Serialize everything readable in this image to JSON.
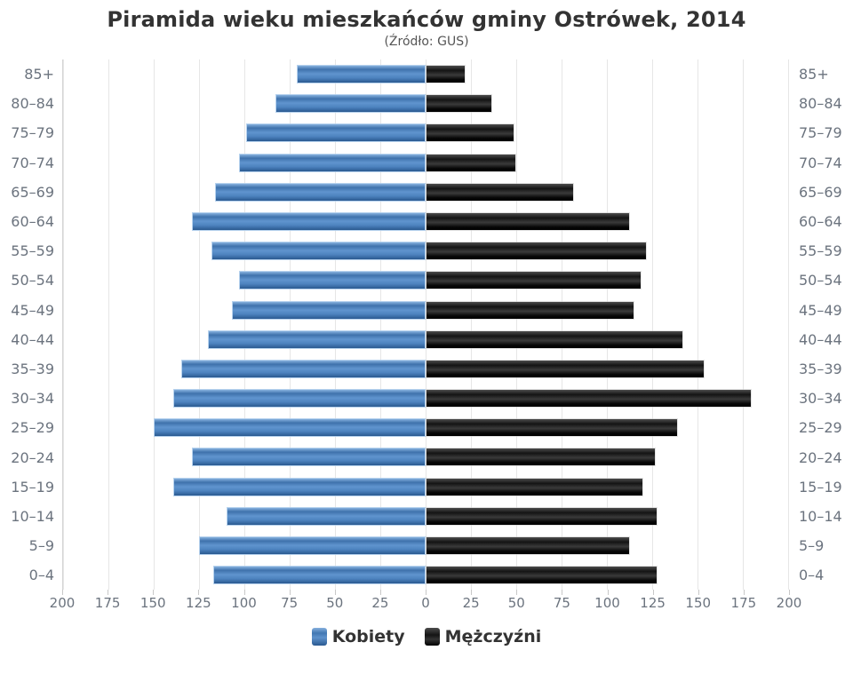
{
  "header": {
    "title": "Piramida wieku mieszkańców gminy Ostrówek, 2014",
    "subtitle": "(Źródło: GUS)"
  },
  "chart_data": {
    "type": "bar",
    "subtype": "population-pyramid",
    "title": "Piramida wieku mieszkańców gminy Ostrówek, 2014",
    "subtitle": "(Źródło: GUS)",
    "categories": [
      "85+",
      "80–84",
      "75–79",
      "70–74",
      "65–69",
      "60–64",
      "55–59",
      "50–54",
      "45–49",
      "40–44",
      "35–39",
      "30–34",
      "25–29",
      "20–24",
      "15–19",
      "10–14",
      "5–9",
      "0–4"
    ],
    "series": [
      {
        "name": "Kobiety",
        "side": "left",
        "color": "#4d83bf",
        "values": [
          70,
          82,
          98,
          102,
          115,
          128,
          117,
          102,
          106,
          119,
          134,
          138,
          149,
          128,
          138,
          109,
          124,
          116
        ]
      },
      {
        "name": "Mężczyźni",
        "side": "right",
        "color": "#1a1a1a",
        "values": [
          21,
          36,
          48,
          49,
          81,
          112,
          121,
          118,
          114,
          141,
          153,
          179,
          138,
          126,
          119,
          127,
          112,
          127
        ]
      }
    ],
    "xlim": [
      0,
      200
    ],
    "tick_interval": 25,
    "tick_labels": [
      "200",
      "175",
      "150",
      "125",
      "100",
      "75",
      "50",
      "25",
      "0",
      "25",
      "50",
      "75",
      "100",
      "125",
      "150",
      "175",
      "200"
    ],
    "grid": true,
    "legend_position": "bottom",
    "colors": {
      "female_bar": "#4d83bf",
      "male_bar": "#1a1a1a",
      "axis_label": "#6b737e",
      "gridline": "#e6e6e6",
      "title_text": "#333333"
    }
  }
}
